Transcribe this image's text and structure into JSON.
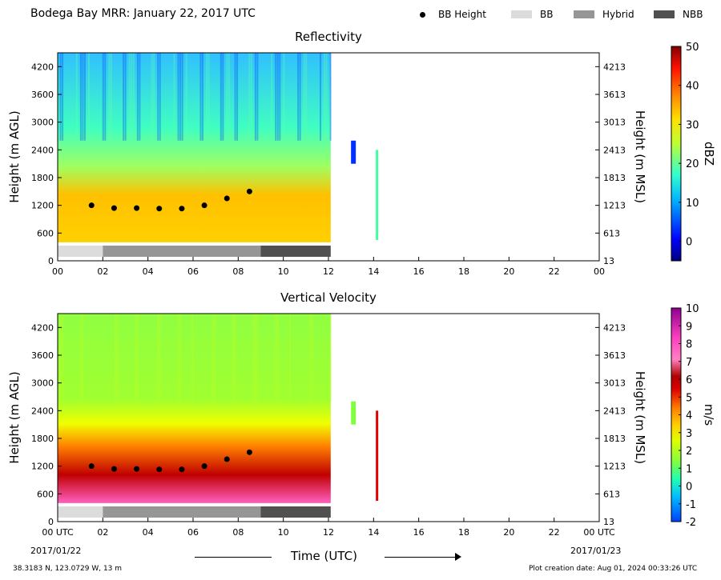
{
  "header": {
    "title": "Bodega Bay MRR:  January 22, 2017 UTC",
    "legend": [
      {
        "label": "BB Height",
        "symbol": "dot",
        "color": "#000000"
      },
      {
        "label": "BB",
        "symbol": "box",
        "color": "#dcdcdc"
      },
      {
        "label": "Hybrid",
        "symbol": "box",
        "color": "#969696"
      },
      {
        "label": "NBB",
        "symbol": "box",
        "color": "#505050"
      }
    ]
  },
  "chart_data": [
    {
      "type": "heatmap",
      "title": "Reflectivity",
      "ylabel": "Height (m AGL)",
      "y2label": "Height (m MSL)",
      "ylim": [
        0,
        4500
      ],
      "yticks": [
        "0",
        "600",
        "1200",
        "1800",
        "2400",
        "3000",
        "3600",
        "4200"
      ],
      "y2ticks": [
        "13",
        "613",
        "1213",
        "1813",
        "2413",
        "3013",
        "3613",
        "4213"
      ],
      "xticks": [
        "00",
        "02",
        "04",
        "06",
        "08",
        "10",
        "12",
        "14",
        "16",
        "18",
        "20",
        "22",
        "00"
      ],
      "colorbar": {
        "label": "dBZ",
        "ticks": [
          "0",
          "10",
          "20",
          "30",
          "40",
          "50"
        ],
        "range": [
          -5,
          50
        ]
      },
      "bb_height": {
        "x": [
          1.5,
          2.5,
          3.5,
          4.5,
          5.5,
          6.5,
          7.5,
          8.5
        ],
        "y": [
          1200,
          1140,
          1140,
          1130,
          1130,
          1200,
          1350,
          1500
        ]
      },
      "regime_bar": [
        {
          "label": "BB",
          "start": 0,
          "end": 2,
          "color": "#dcdcdc"
        },
        {
          "label": "Hybrid",
          "start": 2,
          "end": 9,
          "color": "#969696"
        },
        {
          "label": "NBB",
          "start": 9,
          "end": 12.1,
          "color": "#505050"
        }
      ]
    },
    {
      "type": "heatmap",
      "title": "Vertical Velocity",
      "ylabel": "Height (m AGL)",
      "y2label": "Height (m MSL)",
      "ylim": [
        0,
        4500
      ],
      "yticks": [
        "0",
        "600",
        "1200",
        "1800",
        "2400",
        "3000",
        "3600",
        "4200"
      ],
      "y2ticks": [
        "13",
        "613",
        "1213",
        "1813",
        "2413",
        "3013",
        "3613",
        "4213"
      ],
      "xticks": [
        "00 UTC",
        "02",
        "04",
        "06",
        "08",
        "10",
        "12",
        "14",
        "16",
        "18",
        "20",
        "22",
        "00 UTC"
      ],
      "colorbar": {
        "label": "m/s",
        "ticks": [
          "-2",
          "-1",
          "0",
          "1",
          "2",
          "3",
          "4",
          "5",
          "6",
          "7",
          "8",
          "9",
          "10"
        ],
        "range": [
          -2,
          10
        ]
      },
      "bb_height": {
        "x": [
          1.5,
          2.5,
          3.5,
          4.5,
          5.5,
          6.5,
          7.5,
          8.5
        ],
        "y": [
          1200,
          1140,
          1140,
          1130,
          1130,
          1200,
          1350,
          1500
        ]
      },
      "regime_bar": [
        {
          "label": "BB",
          "start": 0,
          "end": 2,
          "color": "#dcdcdc"
        },
        {
          "label": "Hybrid",
          "start": 2,
          "end": 9,
          "color": "#969696"
        },
        {
          "label": "NBB",
          "start": 9,
          "end": 12.1,
          "color": "#505050"
        }
      ]
    }
  ],
  "footer": {
    "date_left": "2017/01/22",
    "date_right": "2017/01/23",
    "xlabel": "Time (UTC)",
    "location": "38.3183 N, 123.0729 W, 13 m",
    "created": "Plot creation date: Aug 01, 2024 00:33:26 UTC"
  }
}
